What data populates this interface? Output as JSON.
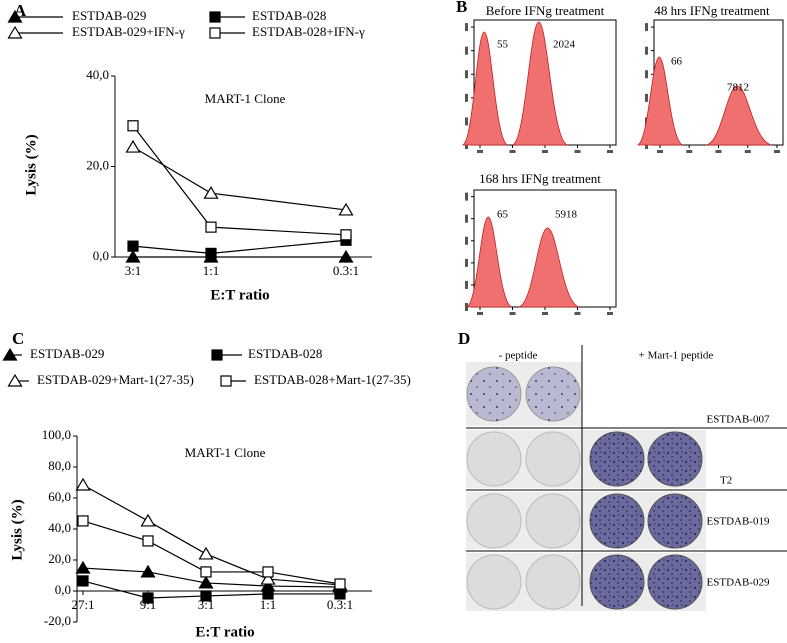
{
  "panel_labels": [
    "A",
    "B",
    "C",
    "D"
  ],
  "chart_data": [
    {
      "type": "line",
      "title": "MART-1 Clone",
      "x_label": "E:T ratio",
      "y_label": "Lysis (%)",
      "categories": [
        "3:1",
        "1:1",
        "0.3:1"
      ],
      "series": [
        {
          "name": "ESTDAB-029",
          "color": "#000000",
          "marker": "filled-triangle",
          "values": [
            0,
            0,
            0
          ]
        },
        {
          "name": "ESTDAB-028",
          "color": "#000000",
          "marker": "filled-square",
          "values": [
            2.4,
            0.8,
            3.7
          ]
        },
        {
          "name": "ESTDAB-029+IFN-γ",
          "color": "#000000",
          "marker": "open-triangle",
          "values": [
            24.3,
            14.1,
            10.4
          ]
        },
        {
          "name": "ESTDAB-028+IFN-γ",
          "color": "#000000",
          "marker": "open-square",
          "values": [
            29,
            6.6,
            4.9
          ]
        }
      ],
      "ylim": [
        0,
        40
      ],
      "yticks": [
        {
          "value": 0,
          "label": "0,0"
        },
        {
          "value": 20,
          "label": "20,0"
        },
        {
          "value": 40,
          "label": "40,0"
        }
      ]
    },
    {
      "type": "line",
      "title": "MART-1 Clone",
      "x_label": "E:T ratio",
      "y_label": "Lysis (%)",
      "categories": [
        "27:1",
        "9:1",
        "3:1",
        "1:1",
        "0.3:1"
      ],
      "series": [
        {
          "name": "ESTDAB-029",
          "color": "#000000",
          "marker": "filled-triangle",
          "values": [
            14.8,
            12.3,
            5.2,
            3.2,
            2.6
          ]
        },
        {
          "name": "ESTDAB-028",
          "color": "#000000",
          "marker": "filled-square",
          "values": [
            6.5,
            -4.5,
            -3.2,
            -1.9,
            -1.9
          ]
        },
        {
          "name": "ESTDAB-029+Mart-1(27-35)",
          "color": "#000000",
          "marker": "open-triangle",
          "values": [
            68.4,
            45.2,
            23.9,
            7.7,
            3.9
          ]
        },
        {
          "name": "ESTDAB-028+Mart-1(27-35)",
          "color": "#000000",
          "marker": "open-square",
          "values": [
            45.2,
            32.3,
            12.3,
            12.3,
            4.5
          ]
        }
      ],
      "ylim": [
        -20,
        100
      ],
      "yticks": [
        {
          "value": -20,
          "label": "-20,0"
        },
        {
          "value": 0,
          "label": "0,0"
        },
        {
          "value": 20,
          "label": "20,0"
        },
        {
          "value": 40,
          "label": "40,0"
        },
        {
          "value": 60,
          "label": "60,0"
        },
        {
          "value": 80,
          "label": "80,0"
        },
        {
          "value": 100,
          "label": "100,0"
        }
      ]
    }
  ],
  "flow_cytometry": [
    {
      "title": "Before IFNg treatment",
      "peaks": [
        55,
        2024
      ]
    },
    {
      "title": "48 hrs IFNg treatment",
      "peaks": [
        66,
        7812
      ]
    },
    {
      "title": "168 hrs IFNg treatment",
      "peaks": [
        65,
        5918
      ]
    }
  ],
  "elispot": {
    "columns": [
      "- peptide",
      "+ Mart-1 peptide"
    ],
    "rows": [
      "ESTDAB-007",
      "T2",
      "ESTDAB-019",
      "ESTDAB-029"
    ]
  }
}
